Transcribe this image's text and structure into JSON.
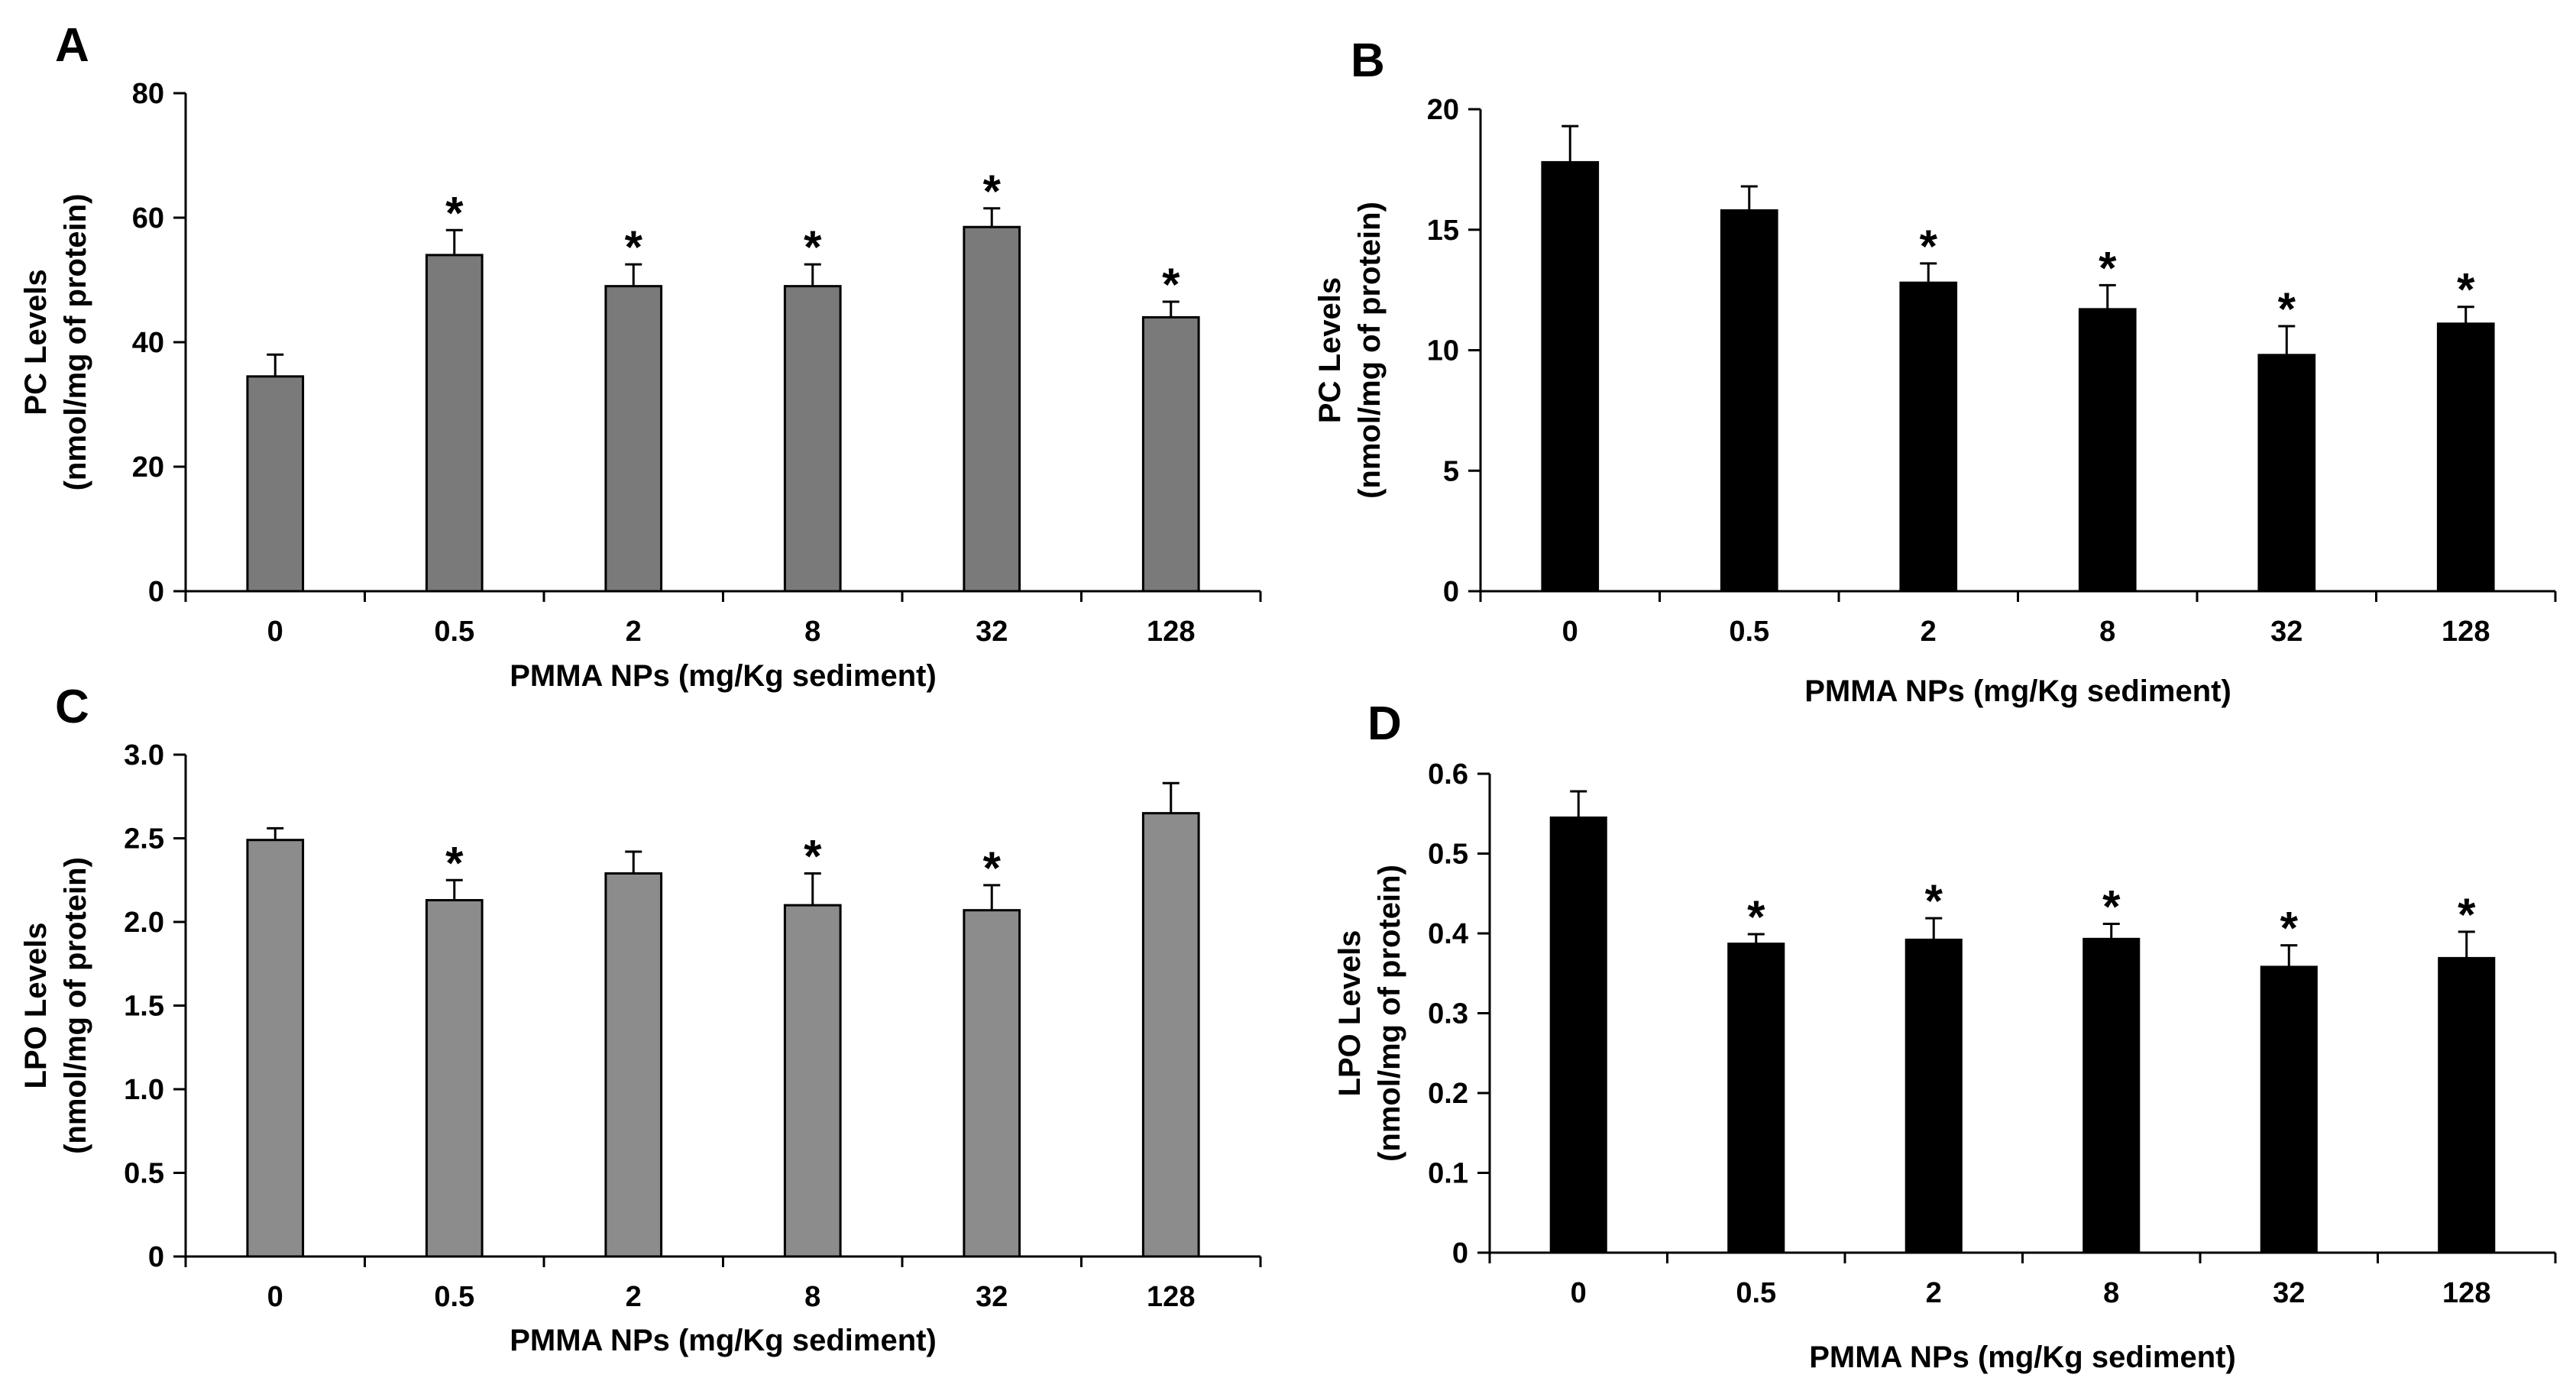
{
  "chart_data": [
    {
      "panel": "A",
      "type": "bar",
      "categories": [
        "0",
        "0.5",
        "2",
        "8",
        "32",
        "128"
      ],
      "values": [
        34.5,
        54,
        49,
        49,
        58.5,
        44
      ],
      "errors": [
        3.5,
        4,
        3.5,
        3.5,
        3,
        2.5
      ],
      "significant": [
        false,
        true,
        true,
        true,
        true,
        true
      ],
      "annotation": "*",
      "ylim": [
        0,
        80
      ],
      "yticks": [
        "0",
        "20",
        "40",
        "60",
        "80"
      ],
      "ylabel_line1": "PC Levels",
      "ylabel_line2": "(nmol/mg of protein)",
      "xlabel": "PMMA NPs (mg/Kg sediment)",
      "bar_color": "#7a7a7a"
    },
    {
      "panel": "B",
      "type": "bar",
      "categories": [
        "0",
        "0.5",
        "2",
        "8",
        "32",
        "128"
      ],
      "values": [
        17.8,
        15.8,
        12.8,
        11.7,
        9.8,
        11.1
      ],
      "errors": [
        1.5,
        1.0,
        0.8,
        1.0,
        1.2,
        0.7
      ],
      "significant": [
        false,
        false,
        true,
        true,
        true,
        true
      ],
      "annotation": "*",
      "ylim": [
        0,
        20
      ],
      "yticks": [
        "0",
        "5",
        "10",
        "15",
        "20"
      ],
      "ylabel_line1": "PC Levels",
      "ylabel_line2": "(nmol/mg of protein)",
      "xlabel": "PMMA NPs (mg/Kg sediment)",
      "bar_color": "#000000"
    },
    {
      "panel": "C",
      "type": "bar",
      "categories": [
        "0",
        "0.5",
        "2",
        "8",
        "32",
        "128"
      ],
      "values": [
        2.49,
        2.13,
        2.29,
        2.1,
        2.07,
        2.65
      ],
      "errors": [
        0.07,
        0.12,
        0.13,
        0.19,
        0.15,
        0.18
      ],
      "significant": [
        false,
        true,
        false,
        true,
        true,
        false
      ],
      "annotation": "*",
      "ylim": [
        0,
        3.0
      ],
      "yticks": [
        "0",
        "0.5",
        "1.0",
        "1.5",
        "2.0",
        "2.5",
        "3.0"
      ],
      "ylabel_line1": "LPO Levels",
      "ylabel_line2": "(nmol/mg of protein)",
      "xlabel": "PMMA NPs (mg/Kg sediment)",
      "bar_color": "#8c8c8c"
    },
    {
      "panel": "D",
      "type": "bar",
      "categories": [
        "0",
        "0.5",
        "2",
        "8",
        "32",
        "128"
      ],
      "values": [
        0.545,
        0.387,
        0.392,
        0.393,
        0.358,
        0.369
      ],
      "errors": [
        0.033,
        0.012,
        0.027,
        0.019,
        0.027,
        0.033
      ],
      "significant": [
        false,
        true,
        true,
        true,
        true,
        true
      ],
      "annotation": "*",
      "ylim": [
        0,
        0.6
      ],
      "yticks": [
        "0",
        "0.1",
        "0.2",
        "0.3",
        "0.4",
        "0.5",
        "0.6"
      ],
      "ylabel_line1": "LPO Levels",
      "ylabel_line2": "(nmol/mg of protein)",
      "xlabel": "PMMA NPs (mg/Kg sediment)",
      "bar_color": "#000000"
    }
  ]
}
